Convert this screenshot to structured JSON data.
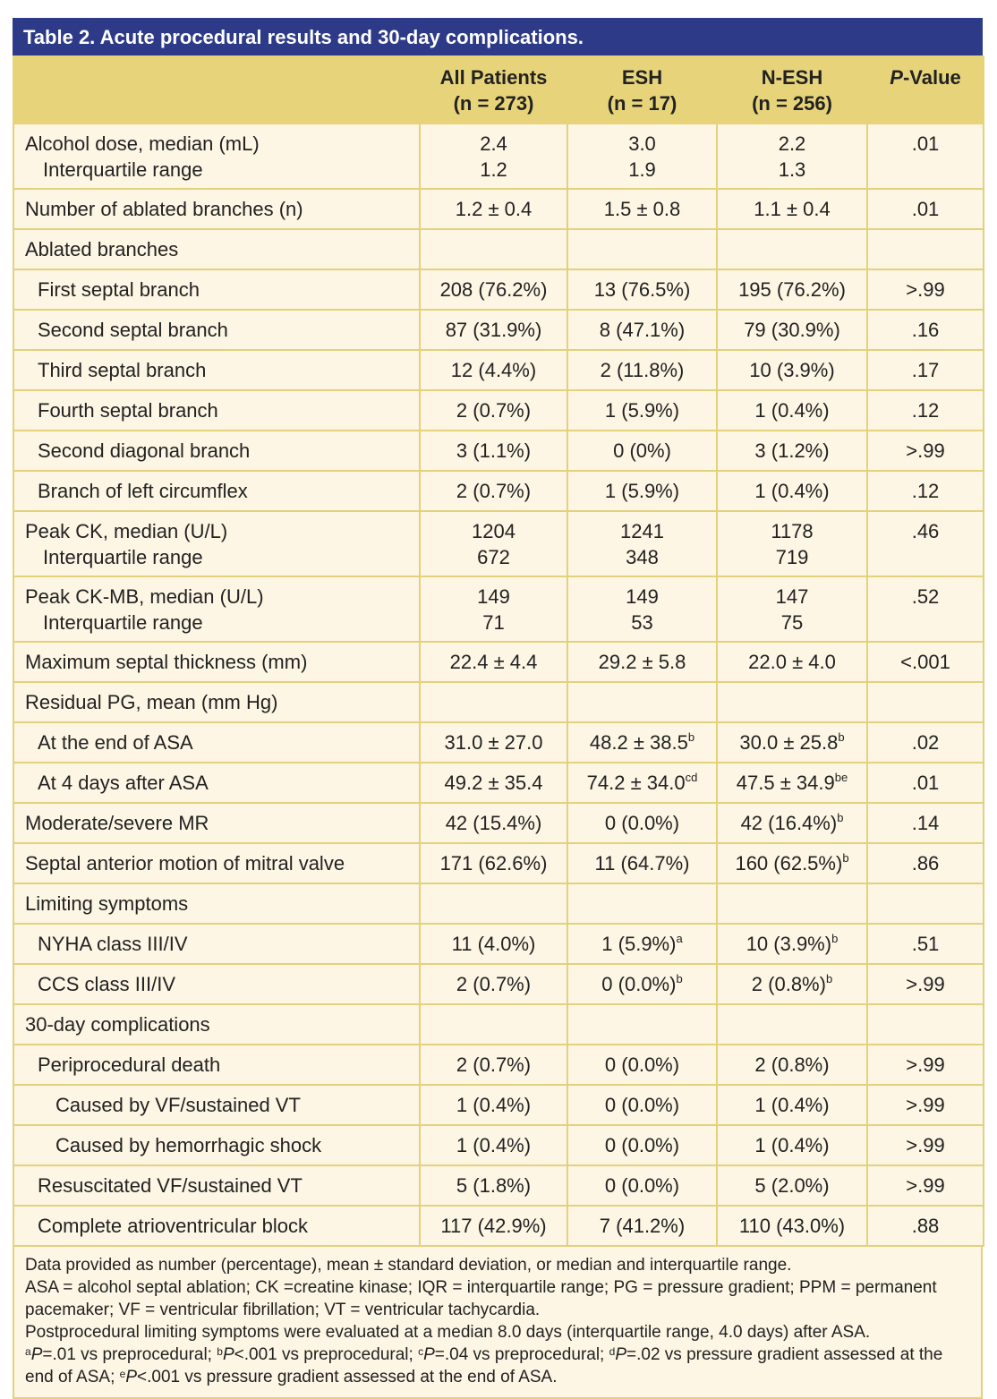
{
  "title": "Table 2. Acute procedural results and 30-day complications.",
  "table": {
    "header": [
      {
        "name": "All Patients",
        "n": "(n = 273)"
      },
      {
        "name": "ESH",
        "n": "(n = 17)"
      },
      {
        "name": "N-ESH",
        "n": "(n = 256)"
      },
      {
        "italic": "P",
        "name": "-Value"
      }
    ],
    "rows": [
      {
        "label": [
          "Alcohol dose, median (mL)",
          "Interquartile range"
        ],
        "cells": [
          [
            "2.4",
            "1.2"
          ],
          [
            "3.0",
            "1.9"
          ],
          [
            "2.2",
            "1.3"
          ],
          [
            ".01"
          ]
        ]
      },
      {
        "label": [
          "Number of ablated branches (n)"
        ],
        "cells": [
          [
            "1.2 ± 0.4"
          ],
          [
            "1.5 ± 0.8"
          ],
          [
            "1.1 ± 0.4"
          ],
          [
            ".01"
          ]
        ]
      },
      {
        "label": [
          "Ablated branches"
        ],
        "cells": []
      },
      {
        "label": [
          "First septal branch"
        ],
        "cells": [
          [
            "208 (76.2%)"
          ],
          [
            "13 (76.5%)"
          ],
          [
            "195 (76.2%)"
          ],
          [
            ">.99"
          ]
        ]
      },
      {
        "label": [
          "Second septal branch"
        ],
        "cells": [
          [
            "87 (31.9%)"
          ],
          [
            "8 (47.1%)"
          ],
          [
            "79 (30.9%)"
          ],
          [
            ".16"
          ]
        ]
      },
      {
        "label": [
          "Third septal branch"
        ],
        "cells": [
          [
            "12 (4.4%)"
          ],
          [
            "2 (11.8%)"
          ],
          [
            "10 (3.9%)"
          ],
          [
            ".17"
          ]
        ]
      },
      {
        "label": [
          "Fourth septal branch"
        ],
        "cells": [
          [
            "2 (0.7%)"
          ],
          [
            "1 (5.9%)"
          ],
          [
            "1 (0.4%)"
          ],
          [
            ".12"
          ]
        ]
      },
      {
        "label": [
          "Second diagonal branch"
        ],
        "cells": [
          [
            "3 (1.1%)"
          ],
          [
            "0 (0%)"
          ],
          [
            "3 (1.2%)"
          ],
          [
            ">.99"
          ]
        ]
      },
      {
        "label": [
          "Branch of left circumflex"
        ],
        "cells": [
          [
            "2 (0.7%)"
          ],
          [
            "1 (5.9%)"
          ],
          [
            "1 (0.4%)"
          ],
          [
            ".12"
          ]
        ]
      },
      {
        "label": [
          "Peak CK, median (U/L)",
          "Interquartile range"
        ],
        "cells": [
          [
            "1204",
            "672"
          ],
          [
            "1241",
            "348"
          ],
          [
            "1178",
            "719"
          ],
          [
            ".46"
          ]
        ]
      },
      {
        "label": [
          "Peak CK-MB, median (U/L)",
          "Interquartile range"
        ],
        "cells": [
          [
            "149",
            "71"
          ],
          [
            "149",
            "53"
          ],
          [
            "147",
            "75"
          ],
          [
            ".52"
          ]
        ]
      },
      {
        "label": [
          "Maximum septal thickness (mm)"
        ],
        "cells": [
          [
            "22.4 ± 4.4"
          ],
          [
            "29.2 ± 5.8"
          ],
          [
            "22.0 ± 4.0"
          ],
          [
            "<.001"
          ]
        ]
      },
      {
        "label": [
          "Residual PG, mean (mm Hg)"
        ],
        "cells": []
      },
      {
        "label": [
          "At the end of ASA"
        ],
        "cells": [
          [
            "31.0 ± 27.0"
          ],
          [
            {
              "text": "48.2 ± 38.5",
              "sup": "b"
            }
          ],
          [
            {
              "text": "30.0 ± 25.8",
              "sup": "b"
            }
          ],
          [
            ".02"
          ]
        ]
      },
      {
        "label": [
          "At 4 days after ASA"
        ],
        "cells": [
          [
            "49.2 ± 35.4"
          ],
          [
            {
              "text": "74.2 ± 34.0",
              "sup": "cd"
            }
          ],
          [
            {
              "text": "47.5 ± 34.9",
              "sup": "be"
            }
          ],
          [
            ".01"
          ]
        ]
      },
      {
        "label": [
          "Moderate/severe MR"
        ],
        "cells": [
          [
            "42 (15.4%)"
          ],
          [
            "0 (0.0%)"
          ],
          [
            {
              "text": "42 (16.4%)",
              "sup": "b"
            }
          ],
          [
            ".14"
          ]
        ]
      },
      {
        "label": [
          "Septal anterior motion of mitral valve"
        ],
        "cells": [
          [
            "171 (62.6%)"
          ],
          [
            "11 (64.7%)"
          ],
          [
            {
              "text": "160 (62.5%)",
              "sup": "b"
            }
          ],
          [
            ".86"
          ]
        ]
      },
      {
        "label": [
          "Limiting symptoms"
        ],
        "cells": []
      },
      {
        "label": [
          "NYHA class III/IV"
        ],
        "cells": [
          [
            "11 (4.0%)"
          ],
          [
            {
              "text": "1 (5.9%)",
              "sup": "a"
            }
          ],
          [
            {
              "text": "10 (3.9%)",
              "sup": "b"
            }
          ],
          [
            ".51"
          ]
        ]
      },
      {
        "label": [
          "CCS class III/IV"
        ],
        "cells": [
          [
            "2 (0.7%)"
          ],
          [
            {
              "text": "0 (0.0%)",
              "sup": "b"
            }
          ],
          [
            {
              "text": "2 (0.8%)",
              "sup": "b"
            }
          ],
          [
            ">.99"
          ]
        ]
      },
      {
        "label": [
          "30-day complications"
        ],
        "cells": []
      },
      {
        "label": [
          "Periprocedural death"
        ],
        "cells": [
          [
            "2 (0.7%)"
          ],
          [
            "0 (0.0%)"
          ],
          [
            "2 (0.8%)"
          ],
          [
            ">.99"
          ]
        ]
      },
      {
        "label": [
          "Caused by VF/sustained VT"
        ],
        "cells": [
          [
            "1 (0.4%)"
          ],
          [
            "0 (0.0%)"
          ],
          [
            "1 (0.4%)"
          ],
          [
            ">.99"
          ]
        ]
      },
      {
        "label": [
          "Caused by hemorrhagic shock"
        ],
        "cells": [
          [
            "1 (0.4%)"
          ],
          [
            "0 (0.0%)"
          ],
          [
            "1 (0.4%)"
          ],
          [
            ">.99"
          ]
        ]
      },
      {
        "label": [
          "Resuscitated VF/sustained VT"
        ],
        "cells": [
          [
            "5 (1.8%)"
          ],
          [
            "0 (0.0%)"
          ],
          [
            "5 (2.0%)"
          ],
          [
            ">.99"
          ]
        ]
      },
      {
        "label": [
          "Complete atrioventricular block"
        ],
        "cells": [
          [
            "117 (42.9%)"
          ],
          [
            "7 (41.2%)"
          ],
          [
            "110 (43.0%)"
          ],
          [
            ".88"
          ]
        ]
      }
    ]
  },
  "notes": {
    "lines": [
      "Data provided as number (percentage), mean ± standard deviation, or median and interquartile range.",
      "ASA = alcohol septal ablation; CK =creatine kinase; IQR = interquartile range; PG = pressure gradient; PPM = permanent pacemaker; VF = ventricular fibrillation; VT = ventricular tachycardia.",
      "Postprocedural limiting symptoms were evaluated at a median 8.0 days (interquartile range, 4.0 days) after ASA."
    ],
    "symbols": [
      {
        "sup": "a",
        "p": "P",
        "text": "=.01 vs preprocedural;"
      },
      {
        "sup": "b",
        "p": "P",
        "text": "<.001 vs preprocedural;"
      },
      {
        "sup": "c",
        "p": "P",
        "text": "=.04 vs preprocedural;"
      },
      {
        "sup": "d",
        "p": "P",
        "text": "=.02 vs pressure gradient assessed at the end of ASA;"
      },
      {
        "sup": "e",
        "p": "P",
        "text": "<.001 vs pressure gradient assessed at the end of ASA."
      }
    ]
  }
}
